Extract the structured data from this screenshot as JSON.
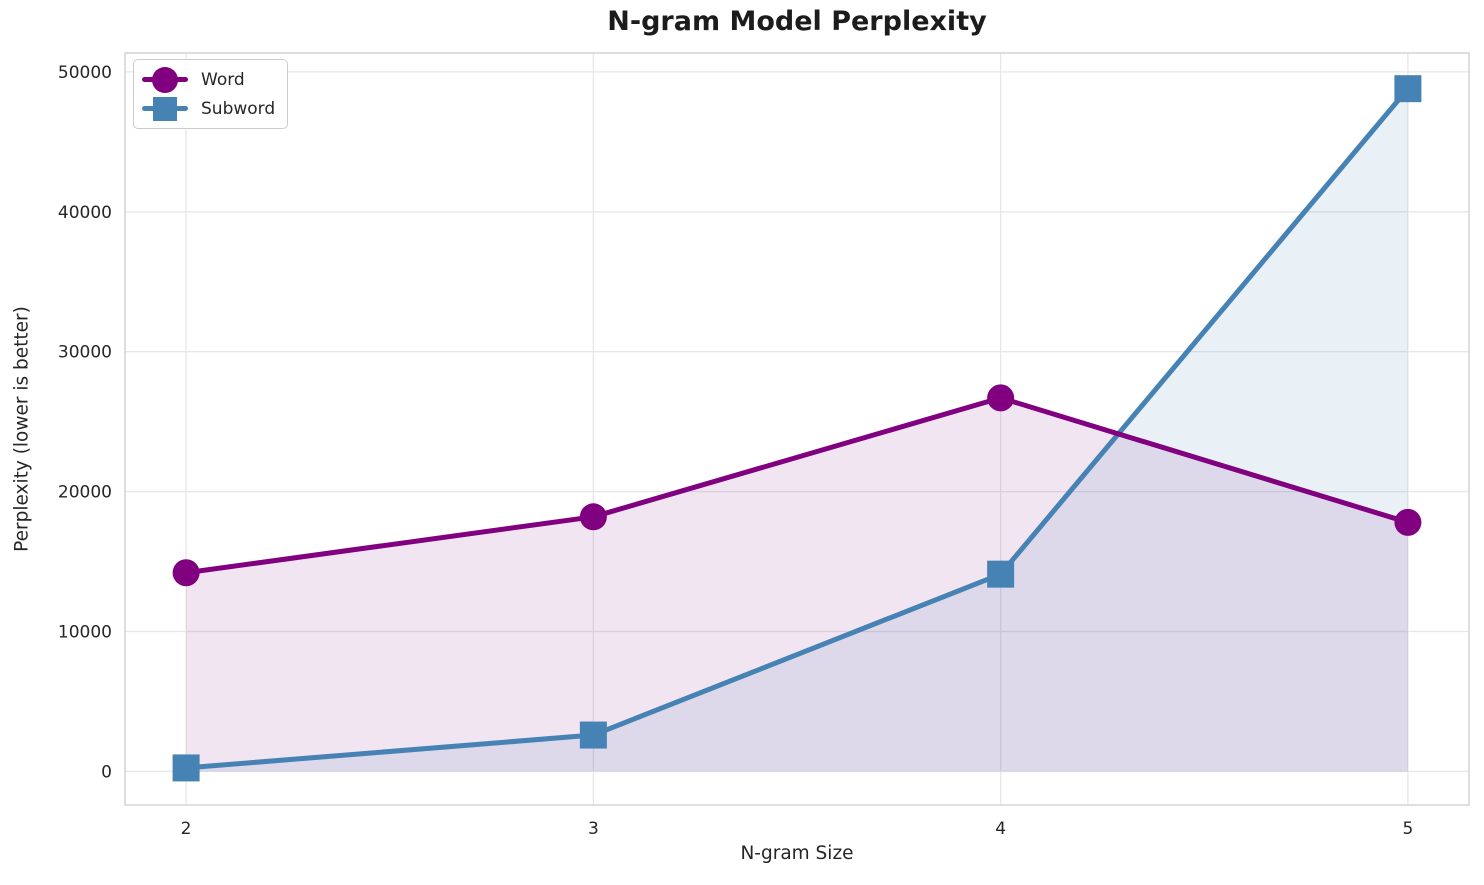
{
  "page": {
    "background": "#ffffff"
  },
  "chart_data": {
    "type": "line",
    "title": "N-gram Model Perplexity",
    "xlabel": "N-gram Size",
    "ylabel": "Perplexity (lower is better)",
    "x": [
      2,
      3,
      4,
      5
    ],
    "series": [
      {
        "name": "Word",
        "marker": "circle",
        "color": "#800080",
        "fill_opacity": 0.1,
        "values": [
          14200,
          18200,
          26700,
          17800
        ]
      },
      {
        "name": "Subword",
        "marker": "square",
        "color": "#4682B4",
        "fill_opacity": 0.12,
        "values": [
          250,
          2600,
          14100,
          48800
        ]
      }
    ],
    "area_fill_baseline": 0,
    "xticks": [
      "2",
      "3",
      "4",
      "5"
    ],
    "yticks": [
      "0",
      "10000",
      "20000",
      "30000",
      "40000",
      "50000"
    ],
    "xtick_values": [
      2,
      3,
      4,
      5
    ],
    "ytick_values": [
      0,
      10000,
      20000,
      30000,
      40000,
      50000
    ],
    "xlim": [
      1.85,
      5.15
    ],
    "ylim": [
      -2400,
      51350
    ],
    "grid": true,
    "legend": {
      "position": "upper-left",
      "entries": [
        "Word",
        "Subword"
      ]
    }
  },
  "style_colors": {
    "text": "#262626",
    "title_text": "#1c1c1c",
    "grid_line": "#e7e7e7",
    "spine": "#d4d4d4",
    "legend_border": "#cccccc",
    "word_series": "#800080",
    "subword_series": "#4682B4"
  }
}
